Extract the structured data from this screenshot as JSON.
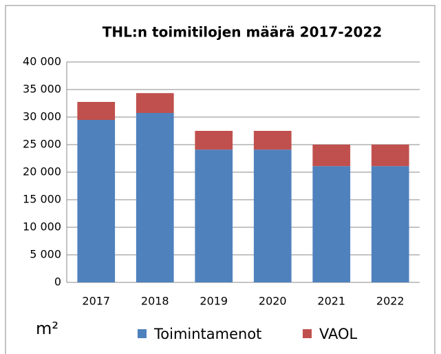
{
  "chart_data": {
    "type": "stacked_bar",
    "title": "THL:n toimitilojen määrä 2017-2022",
    "y_label": "m²",
    "categories": [
      "2017",
      "2018",
      "2019",
      "2020",
      "2021",
      "2022"
    ],
    "series": [
      {
        "name": "Toimintamenot",
        "color": "#4f81bd",
        "values": [
          29500,
          30750,
          24100,
          24100,
          21100,
          21100
        ]
      },
      {
        "name": "VAOL",
        "color": "#c0504d",
        "values": [
          3250,
          3600,
          3400,
          3400,
          3900,
          3900
        ]
      }
    ],
    "ylim": [
      0,
      40000
    ],
    "yticks": [
      0,
      {
        "value": 5000,
        "label": "5 000"
      },
      {
        "value": 10000,
        "label": "10 000"
      },
      {
        "value": 15000,
        "label": "15 000"
      },
      {
        "value": 20000,
        "label": "20 000"
      },
      {
        "value": 25000,
        "label": "25 000"
      },
      {
        "value": 30000,
        "label": "30 000"
      },
      {
        "value": 35000,
        "label": "35 000"
      },
      {
        "value": 40000,
        "label": "40 000"
      }
    ],
    "grid": true
  }
}
